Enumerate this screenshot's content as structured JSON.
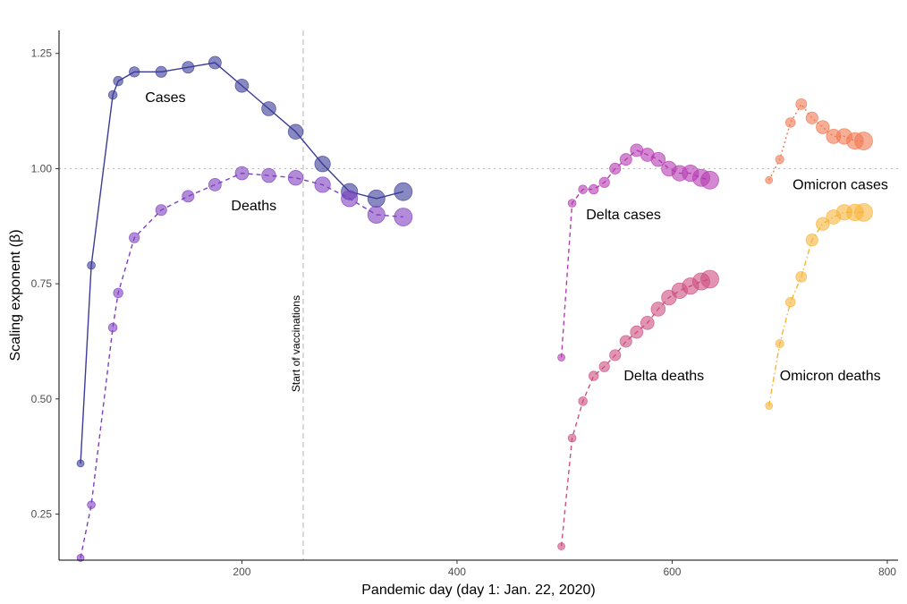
{
  "chart_data": {
    "type": "scatter",
    "title": "",
    "xlabel": "Pandemic day (day 1: Jan. 22, 2020)",
    "ylabel": "Scaling exponent (β)",
    "xlim": [
      30,
      810
    ],
    "ylim": [
      0.15,
      1.3
    ],
    "xticks": [
      200,
      400,
      600,
      800
    ],
    "yticks": [
      0.25,
      0.5,
      0.75,
      1.0,
      1.25
    ],
    "xtick_labels": [
      "200",
      "400",
      "600",
      "800"
    ],
    "ytick_labels": [
      "0.25",
      "0.50",
      "0.75",
      "1.00",
      "1.25"
    ],
    "grid": false,
    "reference_hline": {
      "y": 1.0,
      "style": "dotted",
      "color": "#bfbfbf"
    },
    "reference_vline": {
      "x": 257,
      "style": "dashed",
      "color": "#bfbfbf",
      "label": "Start of vaccinations"
    },
    "series": [
      {
        "name": "Cases",
        "color": "#3a3b98",
        "line_style": "solid",
        "label_pos": [
          110,
          1.145
        ],
        "points": [
          [
            50,
            0.36
          ],
          [
            60,
            0.79
          ],
          [
            80,
            1.16
          ],
          [
            85,
            1.19
          ],
          [
            100,
            1.21
          ],
          [
            125,
            1.21
          ],
          [
            150,
            1.22
          ],
          [
            175,
            1.23
          ],
          [
            200,
            1.18
          ],
          [
            225,
            1.13
          ],
          [
            250,
            1.08
          ],
          [
            275,
            1.01
          ],
          [
            300,
            0.95
          ],
          [
            325,
            0.935
          ],
          [
            350,
            0.95
          ]
        ]
      },
      {
        "name": "Deaths",
        "color": "#7e3fc0",
        "line_style": "dashed",
        "label_pos": [
          190,
          0.91
        ],
        "points": [
          [
            50,
            0.155
          ],
          [
            60,
            0.27
          ],
          [
            80,
            0.655
          ],
          [
            85,
            0.73
          ],
          [
            100,
            0.85
          ],
          [
            125,
            0.91
          ],
          [
            150,
            0.94
          ],
          [
            175,
            0.965
          ],
          [
            200,
            0.99
          ],
          [
            225,
            0.985
          ],
          [
            250,
            0.98
          ],
          [
            275,
            0.965
          ],
          [
            300,
            0.935
          ],
          [
            325,
            0.9
          ],
          [
            350,
            0.895
          ]
        ]
      },
      {
        "name": "Delta cases",
        "color": "#b63ab2",
        "line_style": "dashed",
        "label_pos": [
          520,
          0.89
        ],
        "points": [
          [
            497,
            0.59
          ],
          [
            507,
            0.925
          ],
          [
            517,
            0.955
          ],
          [
            527,
            0.955
          ],
          [
            537,
            0.97
          ],
          [
            547,
            1.0
          ],
          [
            557,
            1.02
          ],
          [
            567,
            1.04
          ],
          [
            577,
            1.03
          ],
          [
            587,
            1.02
          ],
          [
            597,
            1.0
          ],
          [
            607,
            0.99
          ],
          [
            617,
            0.99
          ],
          [
            627,
            0.98
          ],
          [
            635,
            0.975
          ]
        ]
      },
      {
        "name": "Delta deaths",
        "color": "#cd4f80",
        "line_style": "dashed",
        "label_pos": [
          555,
          0.54
        ],
        "points": [
          [
            497,
            0.18
          ],
          [
            507,
            0.415
          ],
          [
            517,
            0.495
          ],
          [
            527,
            0.55
          ],
          [
            537,
            0.57
          ],
          [
            547,
            0.595
          ],
          [
            557,
            0.625
          ],
          [
            567,
            0.645
          ],
          [
            577,
            0.665
          ],
          [
            587,
            0.695
          ],
          [
            597,
            0.72
          ],
          [
            607,
            0.735
          ],
          [
            617,
            0.745
          ],
          [
            627,
            0.755
          ],
          [
            635,
            0.76
          ]
        ]
      },
      {
        "name": "Omicron cases",
        "color": "#f07850",
        "line_style": "dotted",
        "label_pos": [
          712,
          0.955
        ],
        "points": [
          [
            690,
            0.975
          ],
          [
            700,
            1.02
          ],
          [
            710,
            1.1
          ],
          [
            720,
            1.14
          ],
          [
            730,
            1.11
          ],
          [
            740,
            1.09
          ],
          [
            750,
            1.07
          ],
          [
            760,
            1.07
          ],
          [
            770,
            1.06
          ],
          [
            778,
            1.06
          ]
        ]
      },
      {
        "name": "Omicron deaths",
        "color": "#f8b43a",
        "line_style": "dotdash",
        "label_pos": [
          700,
          0.54
        ],
        "points": [
          [
            690,
            0.485
          ],
          [
            700,
            0.62
          ],
          [
            710,
            0.71
          ],
          [
            720,
            0.765
          ],
          [
            730,
            0.845
          ],
          [
            740,
            0.88
          ],
          [
            750,
            0.895
          ],
          [
            760,
            0.905
          ],
          [
            770,
            0.905
          ],
          [
            778,
            0.905
          ]
        ]
      }
    ]
  }
}
